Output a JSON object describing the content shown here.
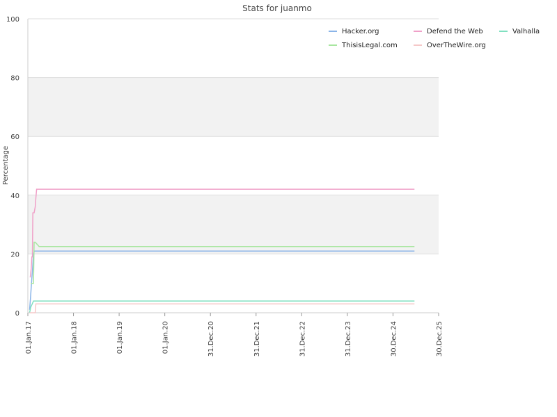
{
  "chart_data": {
    "type": "line",
    "title": "Stats for juanmo",
    "xlabel": "",
    "ylabel": "Percentage",
    "ylim": [
      0,
      100
    ],
    "yticks": [
      0,
      20,
      40,
      60,
      80,
      100
    ],
    "xlim": [
      "2017-01-01",
      "2025-12-30"
    ],
    "xticks": [
      {
        "date": "2017-01-01",
        "label": "01.Jan.17"
      },
      {
        "date": "2018-01-01",
        "label": "01.Jan.18"
      },
      {
        "date": "2019-01-01",
        "label": "01.Jan.19"
      },
      {
        "date": "2020-01-01",
        "label": "01.Jan.20"
      },
      {
        "date": "2020-12-31",
        "label": "31.Dec.20"
      },
      {
        "date": "2021-12-31",
        "label": "31.Dec.21"
      },
      {
        "date": "2022-12-31",
        "label": "31.Dec.22"
      },
      {
        "date": "2023-12-31",
        "label": "31.Dec.23"
      },
      {
        "date": "2024-12-30",
        "label": "30.Dec.24"
      },
      {
        "date": "2025-12-30",
        "label": "30.Dec.25"
      }
    ],
    "grid": "alternating horizontal bands",
    "legend_position": "top-right",
    "series": [
      {
        "name": "Hacker.org",
        "color": "#8ab4e8",
        "points": [
          [
            "2017-01-15",
            1
          ],
          [
            "2017-01-22",
            5
          ],
          [
            "2017-01-30",
            10
          ],
          [
            "2017-02-08",
            15
          ],
          [
            "2017-02-15",
            20
          ],
          [
            "2017-02-22",
            21
          ],
          [
            "2025-06-20",
            21
          ]
        ]
      },
      {
        "name": "Defend the Web",
        "color": "#f0a0c8",
        "points": [
          [
            "2017-01-20",
            12
          ],
          [
            "2017-01-28",
            15
          ],
          [
            "2017-02-02",
            19
          ],
          [
            "2017-02-06",
            19
          ],
          [
            "2017-02-10",
            34
          ],
          [
            "2017-02-20",
            34
          ],
          [
            "2017-03-01",
            36
          ],
          [
            "2017-03-06",
            39
          ],
          [
            "2017-03-12",
            42
          ],
          [
            "2025-06-20",
            42
          ]
        ]
      },
      {
        "name": "Valhalla",
        "color": "#80e0c0",
        "points": [
          [
            "2017-01-15",
            0
          ],
          [
            "2017-01-25",
            2
          ],
          [
            "2017-02-05",
            3
          ],
          [
            "2017-02-15",
            4
          ],
          [
            "2025-06-20",
            4
          ]
        ]
      },
      {
        "name": "ThisisLegal.com",
        "color": "#a8e6a0",
        "points": [
          [
            "2017-01-25",
            10
          ],
          [
            "2017-02-15",
            10
          ],
          [
            "2017-02-20",
            24
          ],
          [
            "2017-03-01",
            24
          ],
          [
            "2017-04-01",
            22.5
          ],
          [
            "2025-06-20",
            22.5
          ]
        ]
      },
      {
        "name": "OverTheWire.org",
        "color": "#f5c8c8",
        "points": [
          [
            "2017-01-15",
            0
          ],
          [
            "2017-03-01",
            0
          ],
          [
            "2017-03-06",
            3
          ],
          [
            "2025-06-20",
            3
          ]
        ]
      }
    ]
  }
}
